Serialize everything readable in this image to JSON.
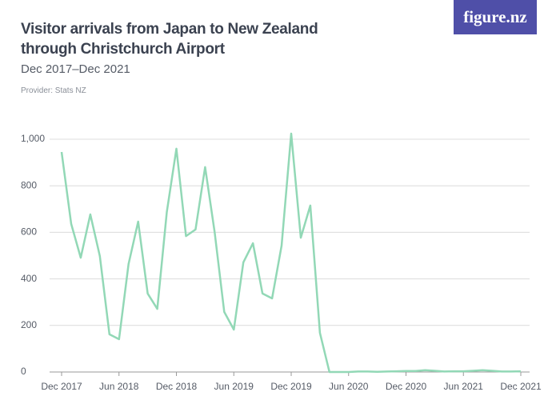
{
  "chart_data": {
    "type": "line",
    "title": "Visitor arrivals from Japan to New Zealand through Christchurch Airport",
    "subtitle": "Dec 2017–Dec 2021",
    "source": "Provider: Stats NZ",
    "logo": "figure.nz",
    "categories": [
      "Dec 2017",
      null,
      null,
      null,
      null,
      null,
      "Jun 2018",
      null,
      null,
      null,
      null,
      null,
      "Dec 2018",
      null,
      null,
      null,
      null,
      null,
      "Jun 2019",
      null,
      null,
      null,
      null,
      null,
      "Dec 2019",
      null,
      null,
      null,
      null,
      null,
      "Jun 2020",
      null,
      null,
      null,
      null,
      null,
      "Dec 2020",
      null,
      null,
      null,
      null,
      null,
      "Jun 2021",
      null,
      null,
      null,
      null,
      null,
      "Dec 2021"
    ],
    "series": [
      {
        "name": "Visitor arrivals",
        "color": "#92d8b6",
        "values": [
          945,
          636,
          491,
          677,
          498,
          162,
          141,
          464,
          646,
          337,
          271,
          687,
          959,
          584,
          612,
          880,
          601,
          258,
          182,
          471,
          553,
          337,
          316,
          543,
          1024,
          577,
          715,
          168,
          0,
          0,
          0,
          2,
          2,
          1,
          2,
          3,
          4,
          4,
          8,
          5,
          2,
          3,
          3,
          5,
          8,
          5,
          2,
          2,
          3
        ]
      }
    ],
    "ylim": [
      0,
      1050
    ],
    "yticks": [
      0,
      200,
      400,
      600,
      800,
      {
        "value": 1000,
        "label": "1,000"
      }
    ],
    "grid": true
  }
}
